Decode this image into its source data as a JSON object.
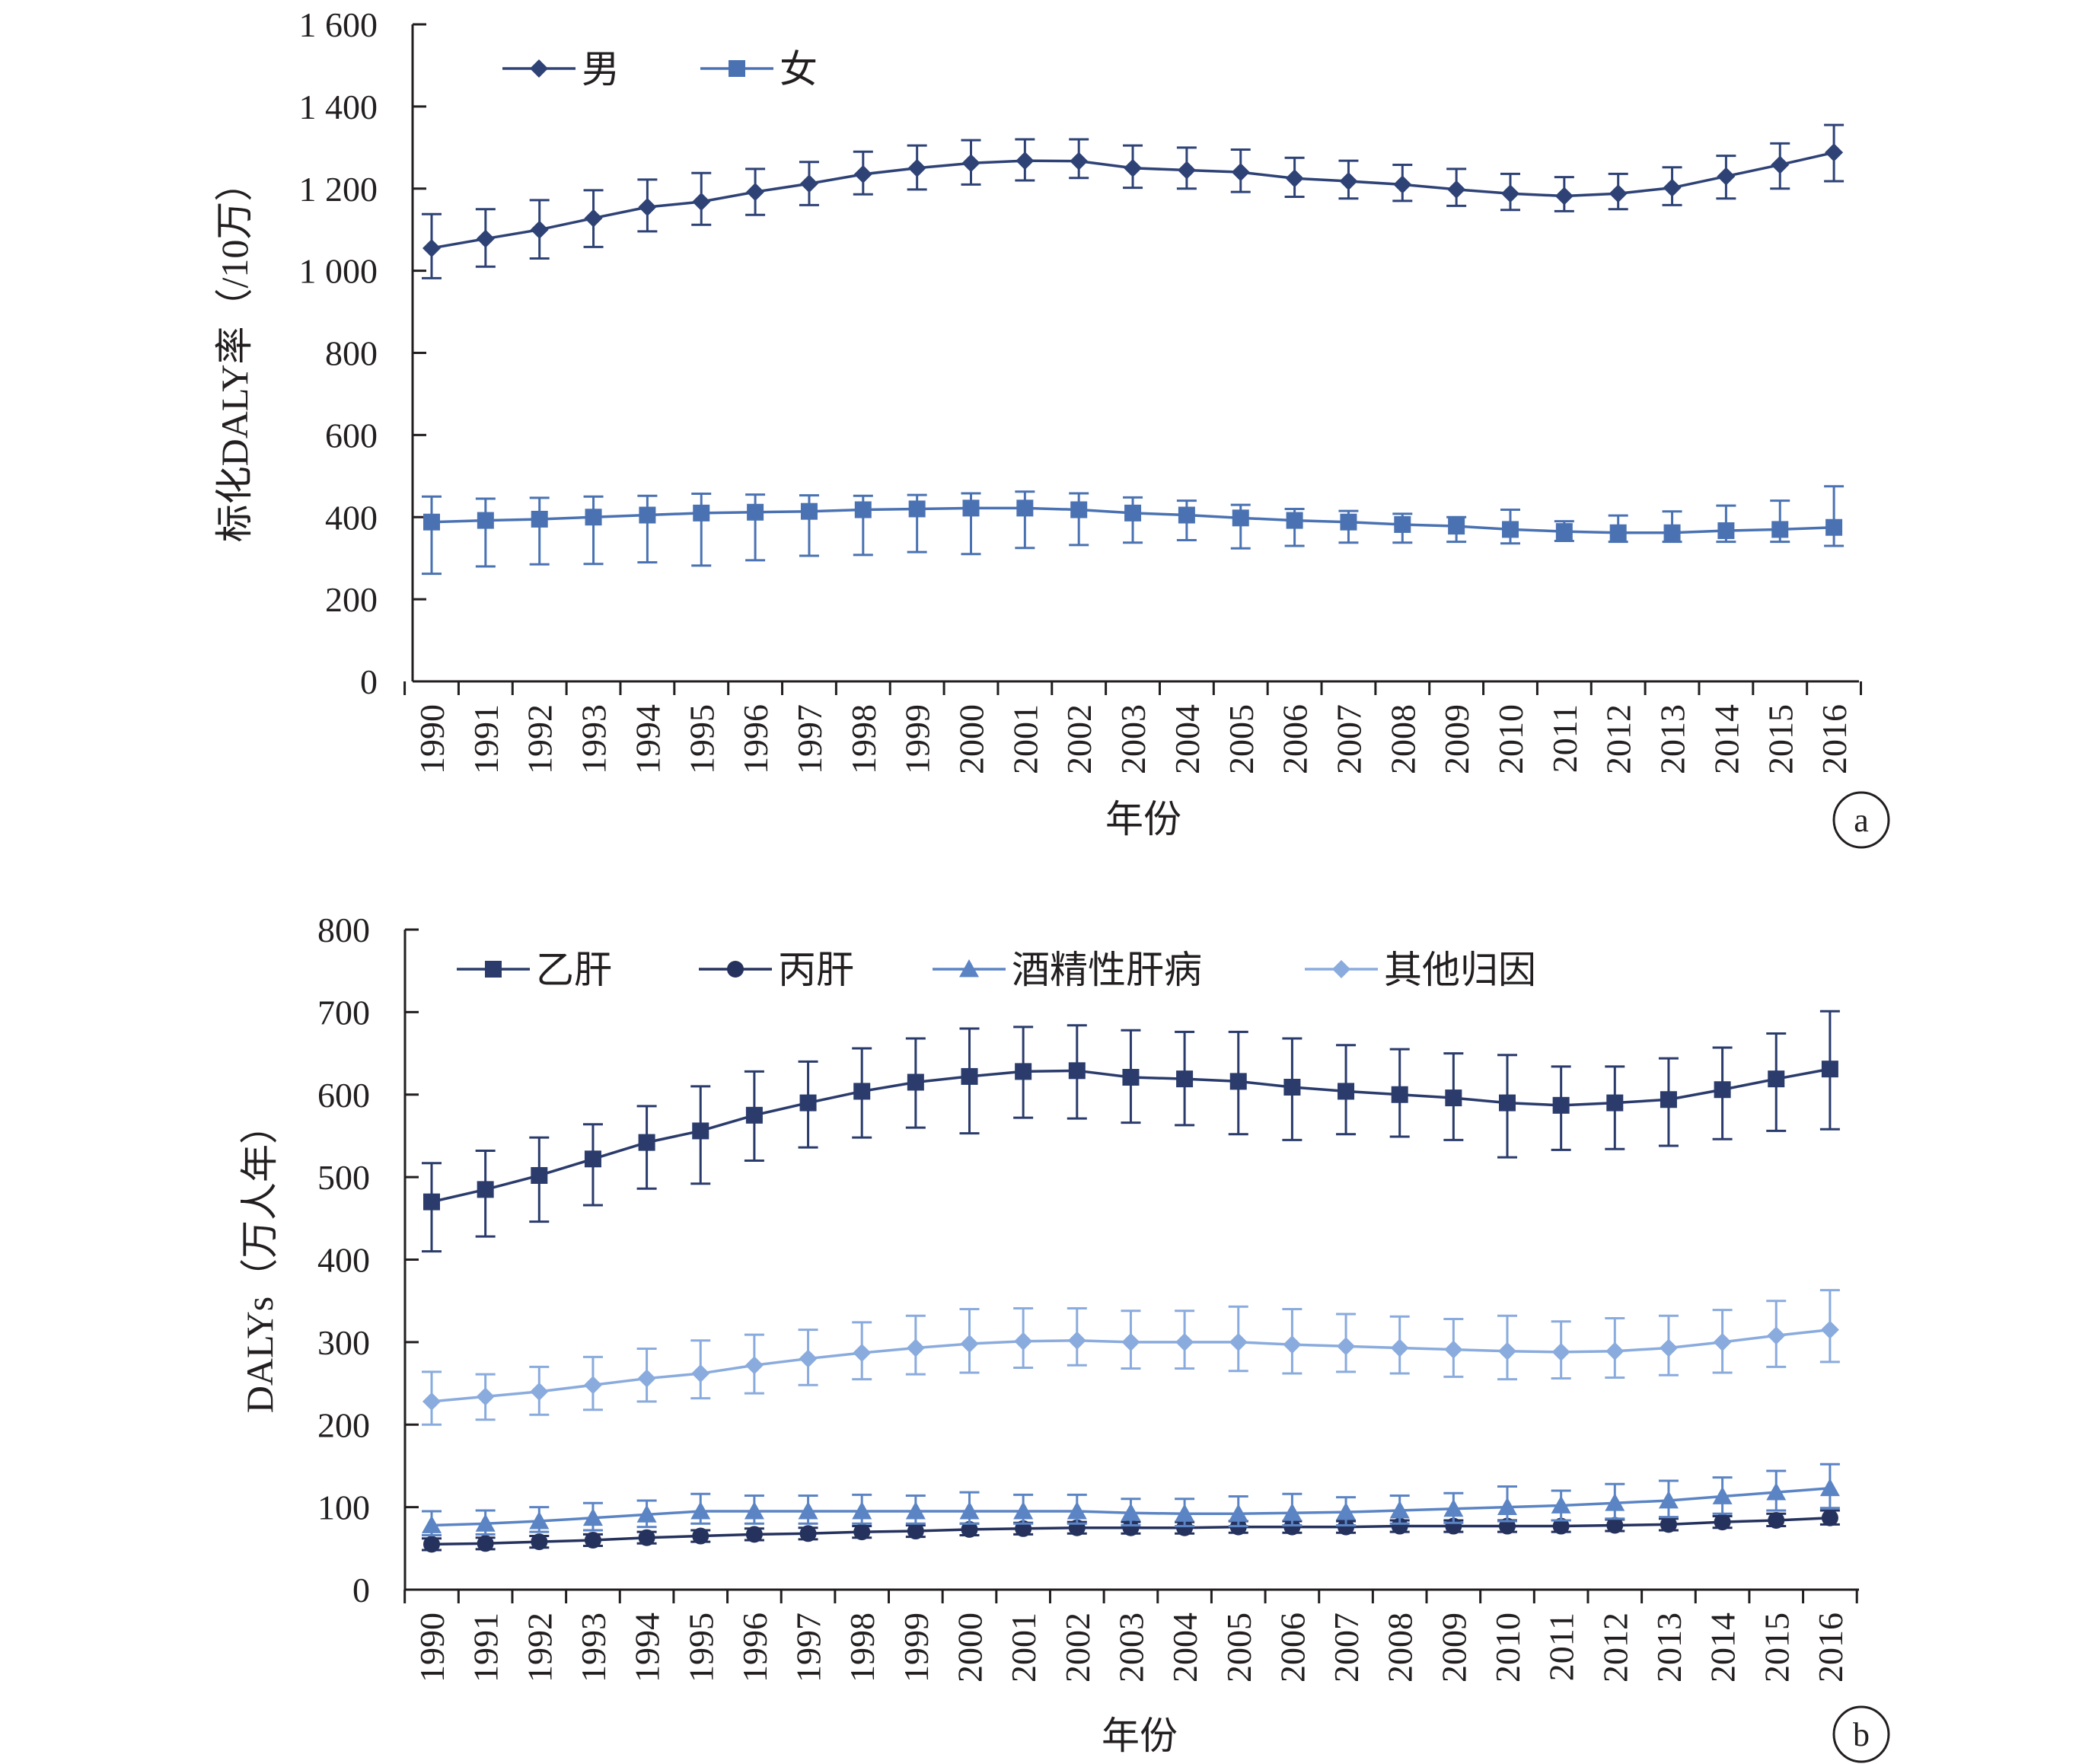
{
  "figure": {
    "background": "#ffffff",
    "axis_color": "#231f20"
  },
  "chart_data": [
    {
      "id": "a",
      "type": "line",
      "panel_label": "a",
      "xlabel": "年份",
      "ylabel": "标化DALY率（/10万）",
      "ylim": [
        0,
        1600
      ],
      "yticks": [
        0,
        200,
        400,
        600,
        800,
        1000,
        1200,
        1400,
        1600
      ],
      "ytick_labels": [
        "0",
        "200",
        "400",
        "600",
        "800",
        "1 000",
        "1 200",
        "1 400",
        "1 600"
      ],
      "x": [
        1990,
        1991,
        1992,
        1993,
        1994,
        1995,
        1996,
        1997,
        1998,
        1999,
        2000,
        2001,
        2002,
        2003,
        2004,
        2005,
        2006,
        2007,
        2008,
        2009,
        2010,
        2011,
        2012,
        2013,
        2014,
        2015,
        2016
      ],
      "legend_position": "top-left",
      "grid": false,
      "error_bars": true,
      "series": [
        {
          "name": "男",
          "marker": "diamond",
          "color": "#2e4276",
          "values": [
            1055,
            1078,
            1100,
            1128,
            1155,
            1168,
            1192,
            1212,
            1235,
            1250,
            1262,
            1268,
            1267,
            1250,
            1245,
            1240,
            1225,
            1218,
            1210,
            1198,
            1188,
            1182,
            1188,
            1202,
            1230,
            1258,
            1288
          ],
          "upper": [
            1138,
            1150,
            1172,
            1196,
            1222,
            1238,
            1248,
            1265,
            1290,
            1305,
            1318,
            1320,
            1320,
            1305,
            1300,
            1295,
            1275,
            1268,
            1258,
            1248,
            1236,
            1228,
            1236,
            1252,
            1280,
            1310,
            1355
          ],
          "lower": [
            982,
            1010,
            1030,
            1058,
            1096,
            1112,
            1136,
            1160,
            1186,
            1198,
            1210,
            1220,
            1226,
            1202,
            1200,
            1192,
            1180,
            1176,
            1170,
            1158,
            1148,
            1145,
            1150,
            1160,
            1176,
            1200,
            1218
          ]
        },
        {
          "name": "女",
          "marker": "square",
          "color": "#4a72b2",
          "values": [
            388,
            392,
            395,
            400,
            405,
            410,
            412,
            414,
            418,
            420,
            422,
            422,
            418,
            410,
            405,
            398,
            392,
            388,
            382,
            378,
            370,
            365,
            362,
            362,
            367,
            370,
            375
          ],
          "upper": [
            450,
            445,
            447,
            450,
            452,
            457,
            455,
            453,
            452,
            454,
            458,
            462,
            458,
            448,
            440,
            430,
            420,
            415,
            408,
            400,
            418,
            390,
            404,
            414,
            428,
            440,
            475
          ],
          "lower": [
            262,
            280,
            285,
            286,
            290,
            282,
            295,
            306,
            308,
            315,
            310,
            325,
            332,
            338,
            344,
            324,
            330,
            338,
            338,
            340,
            336,
            342,
            340,
            340,
            340,
            340,
            330
          ]
        }
      ]
    },
    {
      "id": "b",
      "type": "line",
      "panel_label": "b",
      "xlabel": "年份",
      "ylabel": "DALYs（万人年）",
      "ylim": [
        0,
        800
      ],
      "yticks": [
        0,
        100,
        200,
        300,
        400,
        500,
        600,
        700,
        800
      ],
      "ytick_labels": [
        "0",
        "100",
        "200",
        "300",
        "400",
        "500",
        "600",
        "700",
        "800"
      ],
      "x": [
        1990,
        1991,
        1992,
        1993,
        1994,
        1995,
        1996,
        1997,
        1998,
        1999,
        2000,
        2001,
        2002,
        2003,
        2004,
        2005,
        2006,
        2007,
        2008,
        2009,
        2010,
        2011,
        2012,
        2013,
        2014,
        2015,
        2016
      ],
      "legend_position": "top-left",
      "grid": false,
      "error_bars": true,
      "series": [
        {
          "name": "乙肝",
          "marker": "square",
          "color": "#2a3b6c",
          "values": [
            470,
            485,
            502,
            522,
            542,
            556,
            575,
            590,
            604,
            615,
            622,
            628,
            629,
            621,
            619,
            616,
            609,
            604,
            600,
            596,
            590,
            587,
            590,
            594,
            606,
            619,
            631
          ],
          "upper": [
            517,
            532,
            548,
            564,
            586,
            610,
            628,
            640,
            656,
            668,
            680,
            682,
            684,
            678,
            676,
            676,
            668,
            660,
            655,
            650,
            648,
            634,
            634,
            644,
            657,
            674,
            701
          ],
          "lower": [
            410,
            428,
            446,
            466,
            486,
            492,
            520,
            536,
            548,
            560,
            553,
            572,
            571,
            566,
            563,
            552,
            545,
            552,
            549,
            545,
            524,
            533,
            534,
            538,
            546,
            556,
            558
          ]
        },
        {
          "name": "丙肝",
          "marker": "circle",
          "color": "#25325e",
          "values": [
            55,
            56,
            58,
            60,
            63,
            65,
            67,
            68,
            70,
            71,
            73,
            74,
            75,
            75,
            75,
            76,
            76,
            76,
            77,
            77,
            77,
            77,
            78,
            79,
            82,
            84,
            87
          ],
          "upper": [
            62,
            63,
            65,
            67,
            70,
            72,
            74,
            75,
            77,
            78,
            80,
            81,
            82,
            82,
            82,
            83,
            83,
            83,
            84,
            84,
            84,
            84,
            85,
            86,
            89,
            92,
            96
          ],
          "lower": [
            48,
            49,
            51,
            53,
            56,
            58,
            60,
            61,
            63,
            64,
            66,
            67,
            68,
            68,
            68,
            69,
            69,
            69,
            70,
            70,
            70,
            70,
            71,
            72,
            75,
            77,
            79
          ]
        },
        {
          "name": "酒精性肝病",
          "marker": "triangle",
          "color": "#5b84c4",
          "values": [
            78,
            80,
            83,
            87,
            91,
            95,
            95,
            95,
            95,
            95,
            95,
            95,
            95,
            93,
            92,
            92,
            93,
            94,
            96,
            98,
            100,
            102,
            105,
            108,
            113,
            118,
            123
          ],
          "upper": [
            95,
            96,
            100,
            105,
            108,
            116,
            114,
            114,
            115,
            114,
            118,
            115,
            115,
            110,
            110,
            113,
            116,
            112,
            114,
            117,
            125,
            120,
            128,
            132,
            136,
            144,
            152
          ],
          "lower": [
            66,
            67,
            70,
            72,
            76,
            80,
            80,
            80,
            80,
            80,
            80,
            80,
            80,
            78,
            77,
            77,
            78,
            78,
            80,
            81,
            83,
            84,
            86,
            88,
            92,
            96,
            99
          ]
        },
        {
          "name": "其他归因",
          "marker": "diamond",
          "color": "#8aabdd",
          "values": [
            228,
            234,
            240,
            248,
            256,
            262,
            272,
            280,
            287,
            293,
            298,
            301,
            302,
            300,
            300,
            300,
            297,
            295,
            293,
            291,
            289,
            288,
            289,
            293,
            300,
            308,
            315
          ],
          "upper": [
            264,
            261,
            270,
            282,
            292,
            302,
            309,
            315,
            324,
            332,
            340,
            341,
            341,
            338,
            338,
            343,
            340,
            334,
            331,
            328,
            332,
            325,
            329,
            332,
            339,
            350,
            363
          ],
          "lower": [
            200,
            206,
            212,
            218,
            228,
            232,
            238,
            248,
            255,
            261,
            263,
            269,
            272,
            268,
            268,
            265,
            262,
            264,
            262,
            258,
            255,
            256,
            257,
            260,
            263,
            270,
            276
          ]
        }
      ]
    }
  ]
}
